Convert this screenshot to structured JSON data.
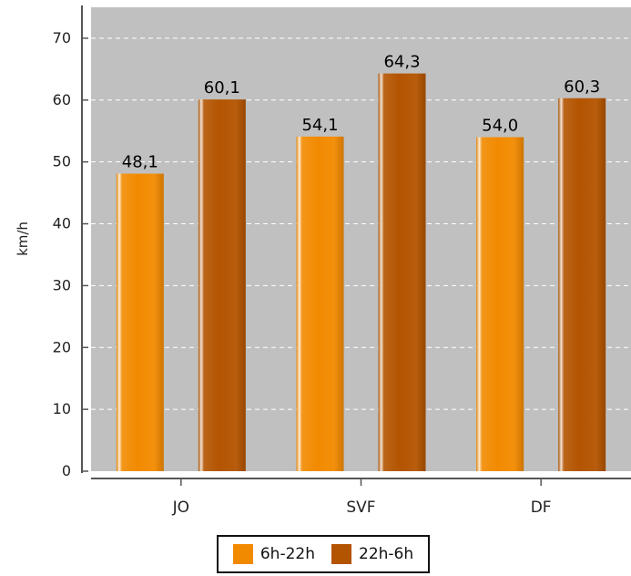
{
  "chart_data": {
    "type": "bar",
    "categories": [
      "JO",
      "SVF",
      "DF"
    ],
    "series": [
      {
        "name": "6h-22h",
        "values": [
          48.1,
          54.1,
          54.0
        ],
        "labels": [
          "48,1",
          "54,1",
          "54,0"
        ],
        "color": "#f28a00"
      },
      {
        "name": "22h-6h",
        "values": [
          60.1,
          64.3,
          60.3
        ],
        "labels": [
          "60,1",
          "64,3",
          "60,3"
        ],
        "color": "#b35400"
      }
    ],
    "title": "",
    "xlabel": "",
    "ylabel": "km/h",
    "ylim": [
      0,
      75
    ],
    "yticks": [
      0,
      10,
      20,
      30,
      40,
      50,
      60,
      70
    ],
    "grid": true,
    "legend_position": "bottom",
    "plot_background": "#c0c0c0"
  }
}
